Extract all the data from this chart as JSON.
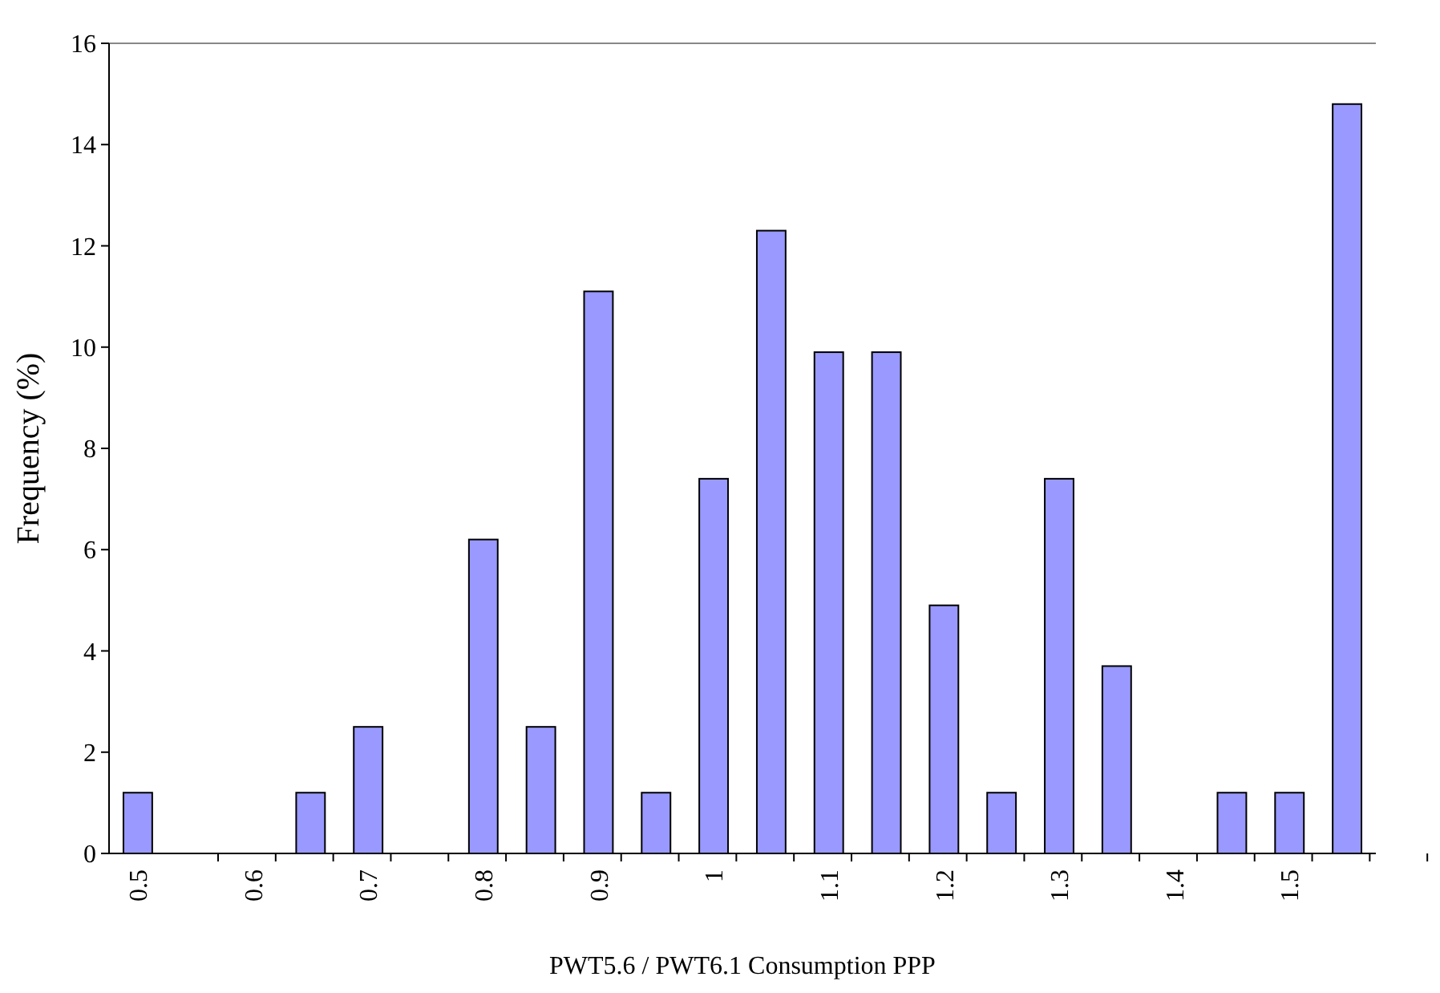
{
  "chart_data": {
    "type": "bar",
    "xlabel": "PWT5.6 / PWT6.1 Consumption PPP",
    "ylabel": "Frequency (%)",
    "categories": [
      "0.5",
      null,
      "0.6",
      null,
      "0.7",
      null,
      "0.8",
      null,
      "0.9",
      null,
      "1",
      null,
      "1.1",
      null,
      "1.2",
      null,
      "1.3",
      null,
      "1.4",
      null,
      "1.5",
      null
    ],
    "values": [
      1.2,
      0,
      0,
      1.2,
      2.5,
      0,
      6.2,
      2.5,
      11.1,
      1.2,
      7.4,
      12.3,
      9.9,
      9.9,
      4.9,
      1.2,
      7.4,
      3.7,
      0,
      1.2,
      1.2,
      14.8
    ],
    "color": "#9999ff",
    "ylim": [
      0,
      16
    ],
    "yticks": [
      0,
      2,
      4,
      6,
      8,
      10,
      12,
      14,
      16
    ],
    "grid": false
  }
}
